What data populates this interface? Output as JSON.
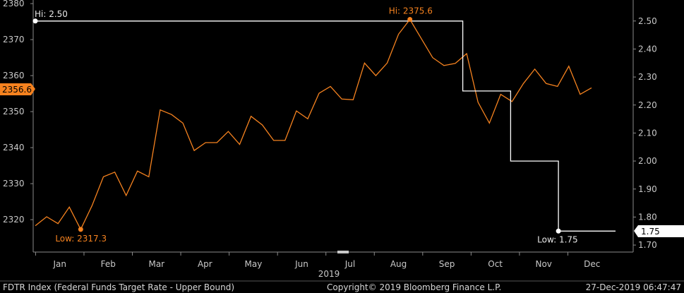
{
  "chart_data": {
    "type": "line",
    "title": "",
    "year_label": "2019",
    "x_labels": [
      "Jan",
      "Feb",
      "Mar",
      "Apr",
      "May",
      "Jun",
      "Jul",
      "Aug",
      "Sep",
      "Oct",
      "Nov",
      "Dec"
    ],
    "left_axis": {
      "ticks": [
        "2320",
        "2330",
        "2340",
        "2350",
        "2360",
        "2370",
        "2380"
      ],
      "range": [
        2311,
        2381
      ]
    },
    "right_axis": {
      "ticks": [
        "1.70",
        "1.80",
        "1.90",
        "2.00",
        "2.10",
        "2.20",
        "2.30",
        "2.40",
        "2.50"
      ],
      "range": [
        1.675,
        2.575
      ]
    },
    "grid": false,
    "series": [
      {
        "axis": "left",
        "color": "#f5821f",
        "values": [
          2318.3,
          2320.8,
          2318.9,
          2323.5,
          2317.3,
          2323.9,
          2331.9,
          2333.2,
          2326.7,
          2333.5,
          2331.9,
          2350.5,
          2349.2,
          2346.8,
          2339.2,
          2341.4,
          2341.4,
          2344.5,
          2340.9,
          2348.7,
          2346.3,
          2342.0,
          2342.0,
          2350.2,
          2348.0,
          2355.1,
          2357.0,
          2353.5,
          2353.3,
          2363.5,
          2360.0,
          2363.5,
          2371.5,
          2375.6,
          2370.3,
          2365.0,
          2362.8,
          2363.4,
          2366.1,
          2352.6,
          2346.8,
          2354.8,
          2352.8,
          2357.8,
          2361.8,
          2357.8,
          2357.0,
          2362.6,
          2354.8,
          2356.6
        ],
        "last_label": "2356.6",
        "hi_label": "Hi: 2375.6",
        "low_label": "Low: 2317.3"
      },
      {
        "axis": "right",
        "color": "#ffffff",
        "name": "FDTR Index (Federal Funds Target Rate - Upper Bound)",
        "steps": [
          {
            "from": 0.0,
            "to": 0.715,
            "value": 2.5
          },
          {
            "from": 0.715,
            "to": 0.795,
            "value": 2.25
          },
          {
            "from": 0.795,
            "to": 0.875,
            "value": 2.0
          },
          {
            "from": 0.875,
            "to": 1.02,
            "value": 1.75
          }
        ],
        "last_label": "1.75",
        "hi_label": "Hi: 2.50",
        "low_label": "Low: 1.75"
      }
    ]
  },
  "footer": {
    "left": "FDTR Index (Federal Funds Target Rate - Upper Bound)",
    "center": "Copyright© 2019 Bloomberg Finance L.P.",
    "right": "27-Dec-2019 06:47:47"
  }
}
